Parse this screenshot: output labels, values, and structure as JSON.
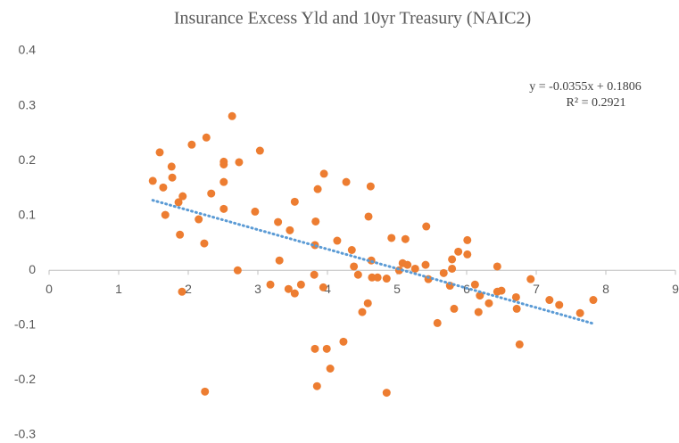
{
  "chart_data": {
    "type": "scatter",
    "title": "Insurance Excess Yld and 10yr Treasury (NAIC2)",
    "color": "#ed7d31",
    "x": [
      1.49,
      1.59,
      1.64,
      1.67,
      1.76,
      1.77,
      1.86,
      1.88,
      1.92,
      1.91,
      2.05,
      2.15,
      2.23,
      2.26,
      2.24,
      2.33,
      2.51,
      2.51,
      2.51,
      2.51,
      2.63,
      2.71,
      2.73,
      2.96,
      3.03,
      3.18,
      3.29,
      3.31,
      3.44,
      3.46,
      3.53,
      3.53,
      3.62,
      3.81,
      3.82,
      3.83,
      3.86,
      3.82,
      3.85,
      3.94,
      3.95,
      3.99,
      4.04,
      4.14,
      4.23,
      4.27,
      4.35,
      4.38,
      4.44,
      4.5,
      4.58,
      4.59,
      4.62,
      4.63,
      4.64,
      4.72,
      4.85,
      4.85,
      4.92,
      5.03,
      5.08,
      5.12,
      5.15,
      5.26,
      5.41,
      5.42,
      5.45,
      5.58,
      5.67,
      5.76,
      5.79,
      5.79,
      5.82,
      5.88,
      6.01,
      6.01,
      6.12,
      6.17,
      6.19,
      6.32,
      6.44,
      6.44,
      6.5,
      6.71,
      6.72,
      6.76,
      6.92,
      7.19,
      7.33,
      7.63,
      7.82
    ],
    "values": [
      0.163,
      0.215,
      0.151,
      0.101,
      0.189,
      0.169,
      0.124,
      0.065,
      0.135,
      -0.039,
      0.229,
      0.093,
      0.049,
      0.242,
      -0.221,
      0.14,
      0.198,
      0.193,
      0.161,
      0.112,
      0.281,
      0,
      0.197,
      0.107,
      0.218,
      -0.026,
      0.088,
      0.018,
      -0.034,
      0.073,
      0.125,
      -0.042,
      -0.026,
      -0.008,
      0.046,
      0.089,
      0.148,
      -0.143,
      -0.211,
      -0.031,
      0.176,
      -0.143,
      -0.179,
      0.054,
      -0.13,
      0.161,
      0.037,
      0.007,
      -0.008,
      -0.076,
      -0.06,
      0.098,
      0.153,
      0.018,
      -0.013,
      -0.013,
      -0.015,
      -0.223,
      0.059,
      0,
      0.013,
      0.057,
      0.01,
      0.003,
      0.01,
      0.08,
      -0.016,
      -0.096,
      -0.005,
      -0.028,
      0.02,
      0.003,
      -0.07,
      0.034,
      0.055,
      0.029,
      -0.026,
      -0.076,
      -0.046,
      -0.06,
      0.007,
      -0.039,
      -0.037,
      -0.049,
      -0.07,
      -0.135,
      -0.016,
      -0.054,
      -0.063,
      -0.078,
      -0.054
    ],
    "trendline": {
      "slope": -0.0355,
      "intercept": 0.1806,
      "color": "#5b9bd5",
      "equation": "y = -0.0355x + 0.1806",
      "r2": "R² = 0.2921"
    },
    "xlim": [
      0,
      9
    ],
    "xticks": [
      0,
      1,
      2,
      3,
      4,
      5,
      6,
      7,
      8,
      9
    ],
    "ylim": [
      -0.3,
      0.4
    ],
    "yticks": [
      -0.3,
      -0.2,
      -0.1,
      0,
      0.1,
      0.2,
      0.3,
      0.4
    ],
    "grid": false
  }
}
